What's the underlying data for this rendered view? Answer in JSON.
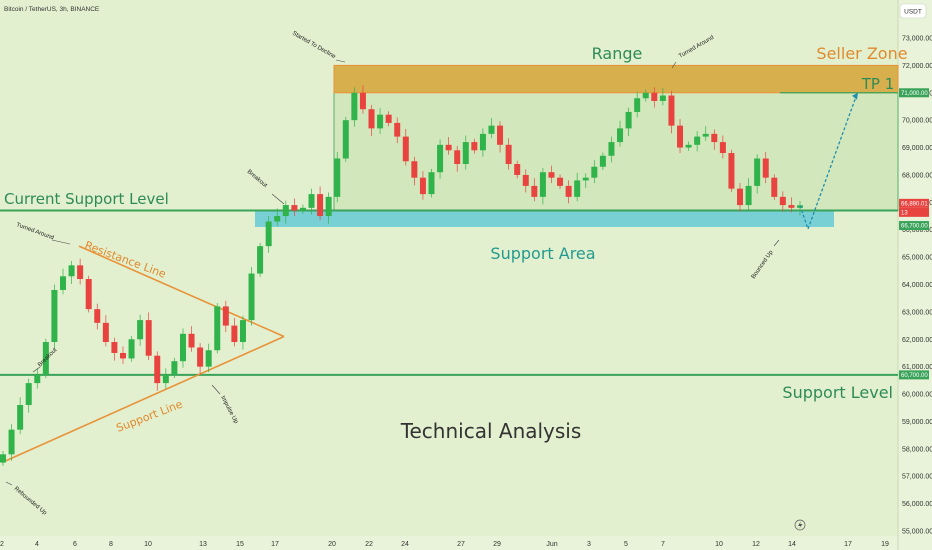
{
  "header": {
    "symbol_line": "Bitcoin / TetherUS, 3h, BINANCE",
    "currency_badge": "USDT"
  },
  "texts": {
    "range": "Range",
    "seller_zone": "Seller Zone",
    "tp1": "TP 1",
    "current_support_level": "Current Support Level",
    "support_area": "Support Area",
    "support_level": "Support Level",
    "technical_analysis": "Technical Analysis",
    "resistance_line": "Resistance Line",
    "support_line": "Support Line"
  },
  "annotations": {
    "started_to_decline": "Started To Decline",
    "turned_around_top": "Turned Around",
    "breakout_upper": "Breakout",
    "turned_around_left": "Turned Around",
    "breakout_lower": "Breakout",
    "impulse_up": "Impulse Up",
    "rebounded_up": "Rebounded Up",
    "bounced_up": "Bounced Up"
  },
  "colors": {
    "background": "#e3f0cf",
    "up_candle": "#2fb34a",
    "down_candle": "#e8433f",
    "seller_zone_fill": "#d9a53a",
    "support_area_fill": "#5cc8d4",
    "green_line": "#3aa35a",
    "orange_line": "#e8923a",
    "forecast": "#1f8fb0"
  },
  "chart_data": {
    "type": "candlestick",
    "title": "Bitcoin / TetherUS, 3h, BINANCE",
    "y_ticks": [
      "73,000.00",
      "72,000.00",
      "71,000.00",
      "70,000.00",
      "69,000.00",
      "68,000.00",
      "67,000.00",
      "66,000.00",
      "65,000.00",
      "64,000.00",
      "63,000.00",
      "62,000.00",
      "61,000.00",
      "60,000.00",
      "59,000.00",
      "58,000.00",
      "57,000.00",
      "56,000.00",
      "55,000.00"
    ],
    "x_ticks": [
      "2",
      "4",
      "6",
      "8",
      "10",
      "13",
      "15",
      "17",
      "20",
      "22",
      "24",
      "27",
      "29",
      "Jun",
      "3",
      "5",
      "7",
      "10",
      "12",
      "14",
      "17",
      "19"
    ],
    "price_labels": {
      "tp1": "71,000.00",
      "current": "66,890.01",
      "timer": "13",
      "support_area_top": "66,700.00",
      "support_level": "60,700.00"
    },
    "levels": {
      "seller_zone": [
        71000,
        72000
      ],
      "tp1": 71000,
      "current_support_level": 66700,
      "support_area": [
        66100,
        66700
      ],
      "support_level": 60700
    },
    "resistance_line": {
      "from": {
        "x": "6",
        "price": 65400
      },
      "to": {
        "x": "15",
        "price": 62100
      }
    },
    "support_line": {
      "from": {
        "x": "2",
        "price": 57500
      },
      "to": {
        "x": "15",
        "price": 62100
      }
    },
    "forecast_path": [
      {
        "x": "14",
        "price": 66100
      },
      {
        "x": "17",
        "price": 71000
      }
    ],
    "close_path": [
      57800,
      58700,
      59600,
      60400,
      60700,
      61900,
      63800,
      64300,
      64700,
      64200,
      63100,
      62600,
      61900,
      61500,
      61300,
      62000,
      62700,
      61400,
      60400,
      60700,
      61200,
      62200,
      61700,
      61000,
      61600,
      63200,
      62500,
      61900,
      62700,
      64400,
      65400,
      66300,
      66500,
      66900,
      66700,
      66800,
      67300,
      66500,
      67200,
      68600,
      70000,
      71000,
      70400,
      69700,
      70200,
      69900,
      69400,
      68500,
      67900,
      67300,
      68100,
      69100,
      68900,
      68400,
      69200,
      68900,
      69500,
      69800,
      69100,
      68400,
      68000,
      67600,
      67200,
      68100,
      67900,
      67600,
      67200,
      67800,
      67900,
      68300,
      68700,
      69200,
      69700,
      70300,
      70800,
      71000,
      70700,
      70900,
      69800,
      69000,
      69100,
      69400,
      69500,
      69200,
      68800,
      67500,
      66900,
      67600,
      68600,
      67900,
      67200,
      66900,
      66800,
      66890
    ]
  }
}
